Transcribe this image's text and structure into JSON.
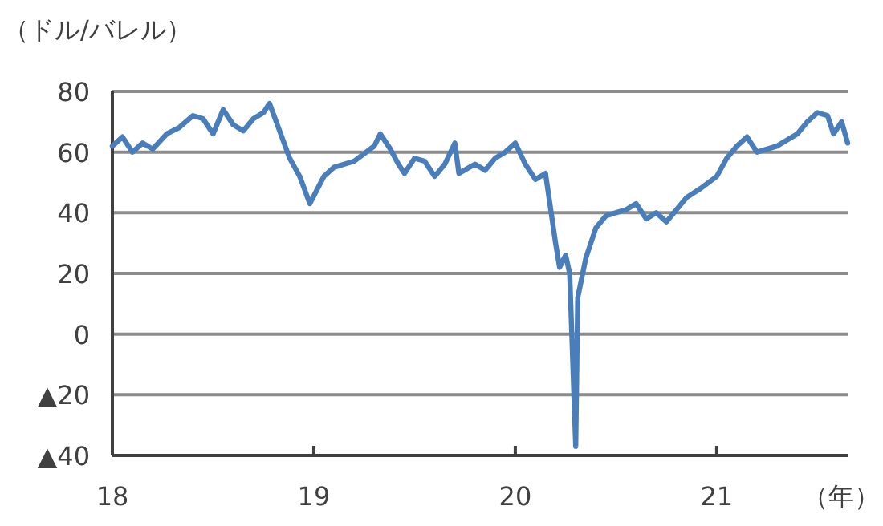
{
  "chart_data": {
    "type": "line",
    "ylabel": "（ドル/バレル）",
    "xlabel": "（年）",
    "xlim": [
      18,
      21.65
    ],
    "xticks": [
      18,
      19,
      20,
      21
    ],
    "ylim": [
      -40,
      80
    ],
    "yticks": [
      80,
      60,
      40,
      20,
      0,
      {
        "value": -20,
        "label": "▲20"
      },
      {
        "value": -40,
        "label": "▲40"
      }
    ],
    "grid": "y",
    "marker": "none",
    "line_style": "solid",
    "series": [
      {
        "color": "#4a7ebb",
        "x": [
          18.0,
          18.05,
          18.1,
          18.15,
          18.2,
          18.27,
          18.33,
          18.4,
          18.45,
          18.5,
          18.55,
          18.6,
          18.65,
          18.7,
          18.75,
          18.78,
          18.83,
          18.88,
          18.93,
          18.98,
          19.05,
          19.1,
          19.2,
          19.3,
          19.33,
          19.38,
          19.42,
          19.45,
          19.5,
          19.55,
          19.6,
          19.65,
          19.7,
          19.72,
          19.8,
          19.85,
          19.9,
          19.95,
          20.0,
          20.05,
          20.1,
          20.15,
          20.2,
          20.22,
          20.25,
          20.27,
          20.3,
          20.31,
          20.35,
          20.4,
          20.45,
          20.55,
          20.6,
          20.65,
          20.7,
          20.75,
          20.8,
          20.85,
          20.92,
          21.0,
          21.05,
          21.1,
          21.15,
          21.2,
          21.3,
          21.4,
          21.45,
          21.5,
          21.55,
          21.58,
          21.62,
          21.65
        ],
        "values": [
          62,
          65,
          60,
          63,
          61,
          66,
          68,
          72,
          71,
          66,
          74,
          69,
          67,
          71,
          73,
          76,
          67,
          58,
          52,
          43,
          52,
          55,
          57,
          62,
          66,
          61,
          56,
          53,
          58,
          57,
          52,
          56,
          63,
          53,
          56,
          54,
          58,
          60,
          63,
          56,
          51,
          53,
          30,
          22,
          26,
          20,
          -37,
          12,
          25,
          35,
          39,
          41,
          43,
          38,
          40,
          37,
          41,
          45,
          48,
          52,
          58,
          62,
          65,
          60,
          62,
          66,
          70,
          73,
          72,
          66,
          70,
          63
        ]
      }
    ]
  }
}
